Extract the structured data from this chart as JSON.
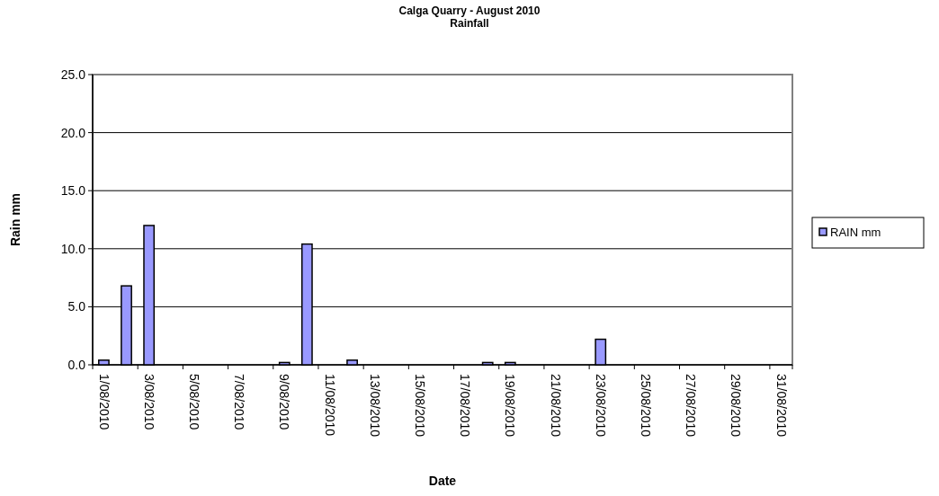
{
  "chart_data": {
    "type": "bar",
    "title": "Calga Quarry - August 2010",
    "subtitle": "Rainfall",
    "xlabel": "Date",
    "ylabel": "Rain mm",
    "categories": [
      "1/08/2010",
      null,
      "3/08/2010",
      null,
      "5/08/2010",
      null,
      "7/08/2010",
      null,
      "9/08/2010",
      null,
      "11/08/2010",
      null,
      "13/08/2010",
      null,
      "15/08/2010",
      null,
      "17/08/2010",
      null,
      "19/08/2010",
      null,
      "21/08/2010",
      null,
      "23/08/2010",
      null,
      "25/08/2010",
      null,
      "27/08/2010",
      null,
      "29/08/2010",
      null,
      "31/08/2010"
    ],
    "series": [
      {
        "name": "RAIN mm",
        "color": "#9999ff",
        "values": [
          0.4,
          6.8,
          12.0,
          0,
          0,
          0,
          0,
          0,
          0.2,
          10.4,
          0,
          0.4,
          0,
          0,
          0,
          0,
          0,
          0.2,
          0.2,
          0,
          0,
          0,
          2.2,
          0,
          0,
          0,
          0,
          0,
          0,
          0,
          0
        ]
      }
    ],
    "ylim": [
      0,
      25
    ],
    "yticks": [
      {
        "value": 0,
        "label": "0.0"
      },
      {
        "value": 5,
        "label": "5.0"
      },
      {
        "value": 10,
        "label": "10.0"
      },
      {
        "value": 15,
        "label": "15.0"
      },
      {
        "value": 20,
        "label": "20.0"
      },
      {
        "value": 25,
        "label": "25.0"
      }
    ],
    "grid": "y",
    "legend": "right"
  }
}
